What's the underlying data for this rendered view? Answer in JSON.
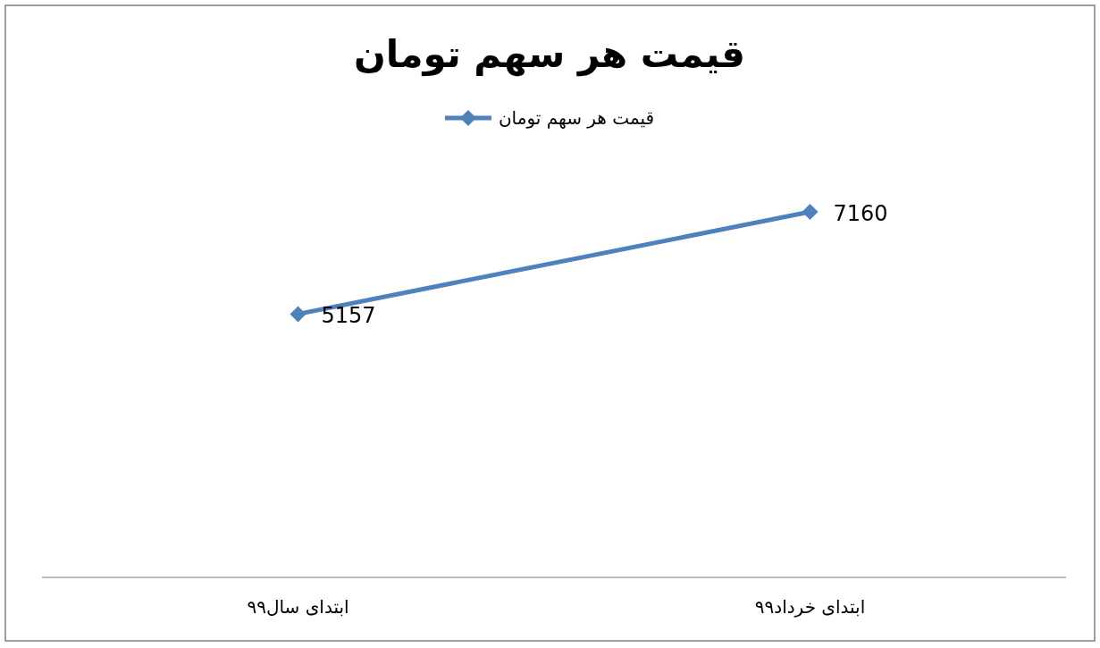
{
  "chart_data": {
    "type": "line",
    "title": "قیمت هر سهم تومان",
    "categories": [
      "ابتدای سال۹۹",
      "ابتدای خرداد۹۹"
    ],
    "series": [
      {
        "name": "قیمت هر سهم تومان",
        "color": "#4f81bd",
        "values": [
          5157,
          7160
        ]
      }
    ],
    "tick_labels": "x",
    "data_labels": true,
    "legend": "top",
    "marker": "diamond",
    "line_style": "solid"
  }
}
